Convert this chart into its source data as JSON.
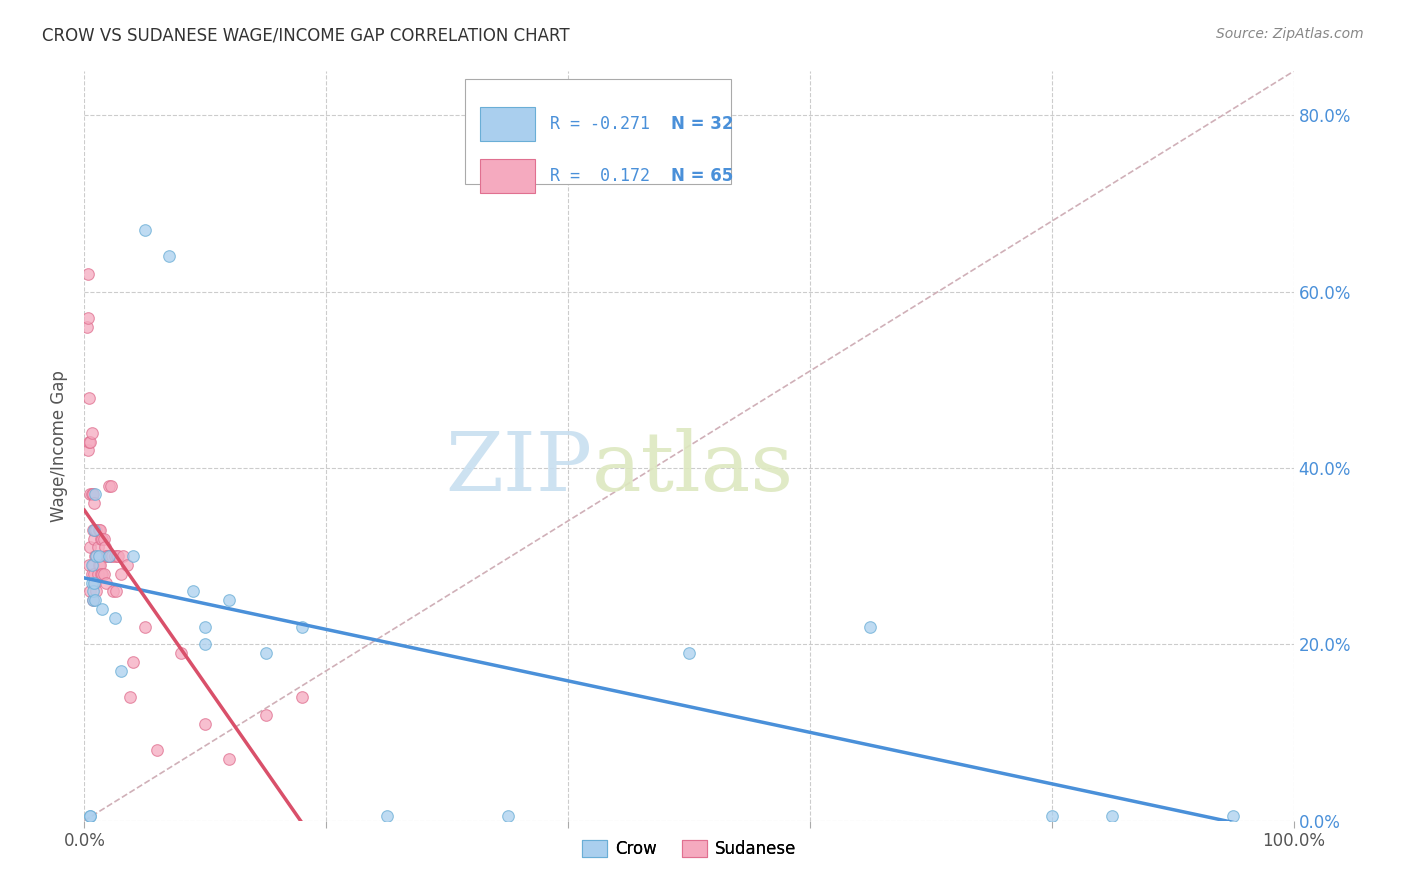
{
  "title": "CROW VS SUDANESE WAGE/INCOME GAP CORRELATION CHART",
  "source": "Source: ZipAtlas.com",
  "ylabel": "Wage/Income Gap",
  "watermark_zip": "ZIP",
  "watermark_atlas": "atlas",
  "crow_R": -0.271,
  "crow_N": 32,
  "sudanese_R": 0.172,
  "sudanese_N": 65,
  "crow_color": "#aacfee",
  "sudanese_color": "#f5aabf",
  "crow_edge_color": "#6aaed6",
  "sudanese_edge_color": "#e07090",
  "crow_line_color": "#4a90d9",
  "sudanese_line_color": "#d9506a",
  "diagonal_color": "#d0b0b8",
  "background_color": "#ffffff",
  "grid_color": "#cccccc",
  "title_color": "#333333",
  "source_color": "#888888",
  "axis_label_color": "#555555",
  "right_tick_color": "#4a90d9",
  "crow_points_x": [
    0.005,
    0.005,
    0.006,
    0.006,
    0.007,
    0.007,
    0.008,
    0.008,
    0.009,
    0.009,
    0.01,
    0.012,
    0.015,
    0.02,
    0.025,
    0.03,
    0.04,
    0.05,
    0.07,
    0.09,
    0.1,
    0.1,
    0.12,
    0.15,
    0.18,
    0.25,
    0.35,
    0.5,
    0.65,
    0.8,
    0.85,
    0.95
  ],
  "crow_points_y": [
    0.005,
    0.005,
    0.27,
    0.29,
    0.25,
    0.26,
    0.27,
    0.33,
    0.25,
    0.37,
    0.3,
    0.3,
    0.24,
    0.3,
    0.23,
    0.17,
    0.3,
    0.67,
    0.64,
    0.26,
    0.22,
    0.2,
    0.25,
    0.19,
    0.22,
    0.005,
    0.005,
    0.19,
    0.22,
    0.005,
    0.005,
    0.005
  ],
  "sudanese_points_x": [
    0.002,
    0.003,
    0.003,
    0.003,
    0.004,
    0.004,
    0.004,
    0.005,
    0.005,
    0.005,
    0.005,
    0.006,
    0.006,
    0.006,
    0.007,
    0.007,
    0.007,
    0.007,
    0.008,
    0.008,
    0.008,
    0.009,
    0.009,
    0.009,
    0.01,
    0.01,
    0.01,
    0.011,
    0.011,
    0.012,
    0.012,
    0.013,
    0.013,
    0.014,
    0.014,
    0.015,
    0.015,
    0.016,
    0.016,
    0.017,
    0.018,
    0.018,
    0.019,
    0.02,
    0.02,
    0.021,
    0.022,
    0.023,
    0.024,
    0.025,
    0.026,
    0.027,
    0.028,
    0.03,
    0.032,
    0.035,
    0.038,
    0.04,
    0.05,
    0.06,
    0.08,
    0.1,
    0.12,
    0.15,
    0.18
  ],
  "sudanese_points_y": [
    0.56,
    0.62,
    0.57,
    0.42,
    0.48,
    0.43,
    0.29,
    0.43,
    0.37,
    0.31,
    0.26,
    0.44,
    0.37,
    0.28,
    0.37,
    0.33,
    0.29,
    0.25,
    0.36,
    0.32,
    0.28,
    0.33,
    0.3,
    0.27,
    0.33,
    0.3,
    0.26,
    0.31,
    0.28,
    0.33,
    0.29,
    0.33,
    0.29,
    0.32,
    0.28,
    0.32,
    0.28,
    0.32,
    0.28,
    0.31,
    0.3,
    0.27,
    0.3,
    0.38,
    0.3,
    0.3,
    0.38,
    0.3,
    0.26,
    0.3,
    0.26,
    0.3,
    0.3,
    0.28,
    0.3,
    0.29,
    0.14,
    0.18,
    0.22,
    0.08,
    0.19,
    0.11,
    0.07,
    0.12,
    0.14
  ],
  "xlim": [
    0.0,
    1.0
  ],
  "ylim": [
    0.0,
    0.85
  ],
  "yticks": [
    0.0,
    0.2,
    0.4,
    0.6,
    0.8
  ],
  "ytick_labels": [
    "0.0%",
    "20.0%",
    "40.0%",
    "60.0%",
    "80.0%"
  ],
  "xticks": [
    0.0,
    0.2,
    0.4,
    0.6,
    0.8,
    1.0
  ],
  "xtick_labels_show": [
    "0.0%",
    "100.0%"
  ],
  "marker_size": 70,
  "marker_alpha": 0.75
}
